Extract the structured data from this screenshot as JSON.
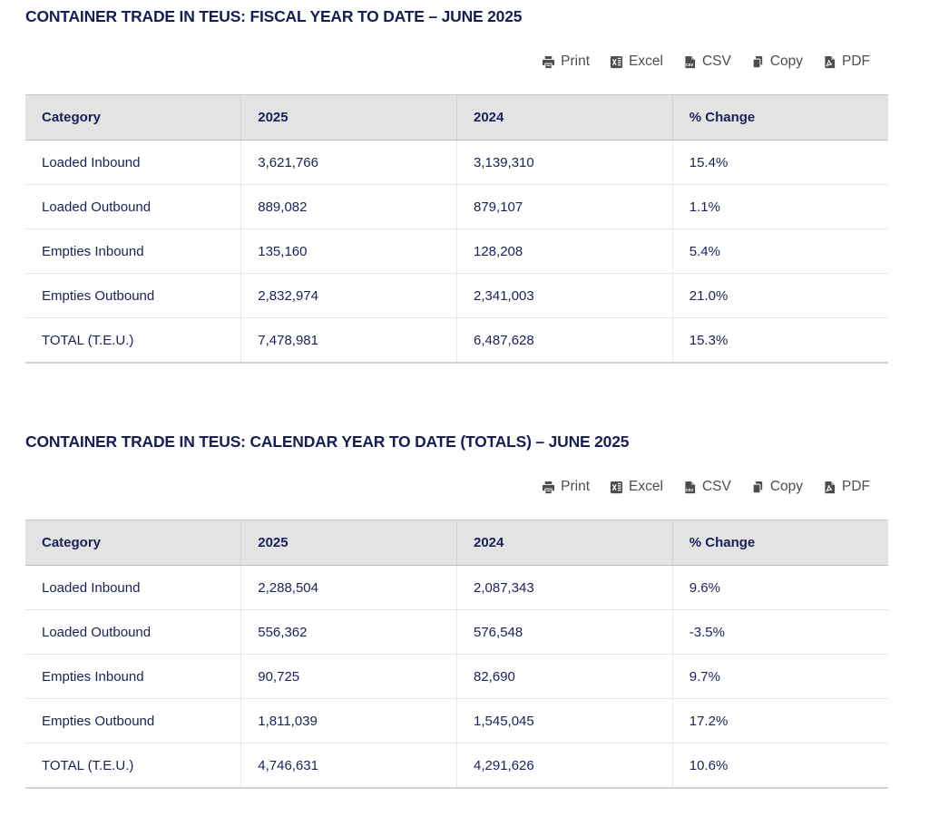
{
  "colors": {
    "title_navy": "#181d57",
    "table_text_navy": "#1b2058",
    "toolbar_gray": "#4d4d4d",
    "header_row_bg": "#e3e3e3",
    "row_divider": "#e7e7e7"
  },
  "sections": [
    {
      "title": "CONTAINER TRADE IN TEUS: FISCAL YEAR TO DATE – JUNE 2025",
      "toolbar": [
        {
          "label": "Print",
          "icon": "printer-icon"
        },
        {
          "label": "Excel",
          "icon": "excel-icon"
        },
        {
          "label": "CSV",
          "icon": "csv-file-icon"
        },
        {
          "label": "Copy",
          "icon": "copy-icon"
        },
        {
          "label": "PDF",
          "icon": "pdf-file-icon"
        }
      ],
      "table": {
        "columns": [
          "Category",
          "2025",
          "2024",
          "% Change"
        ],
        "rows": [
          [
            "Loaded Inbound",
            "3,621,766",
            "3,139,310",
            "15.4%"
          ],
          [
            "Loaded Outbound",
            "889,082",
            "879,107",
            "1.1%"
          ],
          [
            "Empties Inbound",
            "135,160",
            "128,208",
            "5.4%"
          ],
          [
            "Empties Outbound",
            "2,832,974",
            "2,341,003",
            "21.0%"
          ],
          [
            "TOTAL (T.E.U.)",
            "7,478,981",
            "6,487,628",
            "15.3%"
          ]
        ]
      }
    },
    {
      "title": "CONTAINER TRADE IN TEUS: CALENDAR YEAR TO DATE (TOTALS) – JUNE 2025",
      "toolbar": [
        {
          "label": "Print",
          "icon": "printer-icon"
        },
        {
          "label": "Excel",
          "icon": "excel-icon"
        },
        {
          "label": "CSV",
          "icon": "csv-file-icon"
        },
        {
          "label": "Copy",
          "icon": "copy-icon"
        },
        {
          "label": "PDF",
          "icon": "pdf-file-icon"
        }
      ],
      "table": {
        "columns": [
          "Category",
          "2025",
          "2024",
          "% Change"
        ],
        "rows": [
          [
            "Loaded Inbound",
            "2,288,504",
            "2,087,343",
            "9.6%"
          ],
          [
            "Loaded Outbound",
            "556,362",
            "576,548",
            "-3.5%"
          ],
          [
            "Empties Inbound",
            "90,725",
            "82,690",
            "9.7%"
          ],
          [
            "Empties Outbound",
            "1,811,039",
            "1,545,045",
            "17.2%"
          ],
          [
            "TOTAL (T.E.U.)",
            "4,746,631",
            "4,291,626",
            "10.6%"
          ]
        ]
      }
    }
  ]
}
